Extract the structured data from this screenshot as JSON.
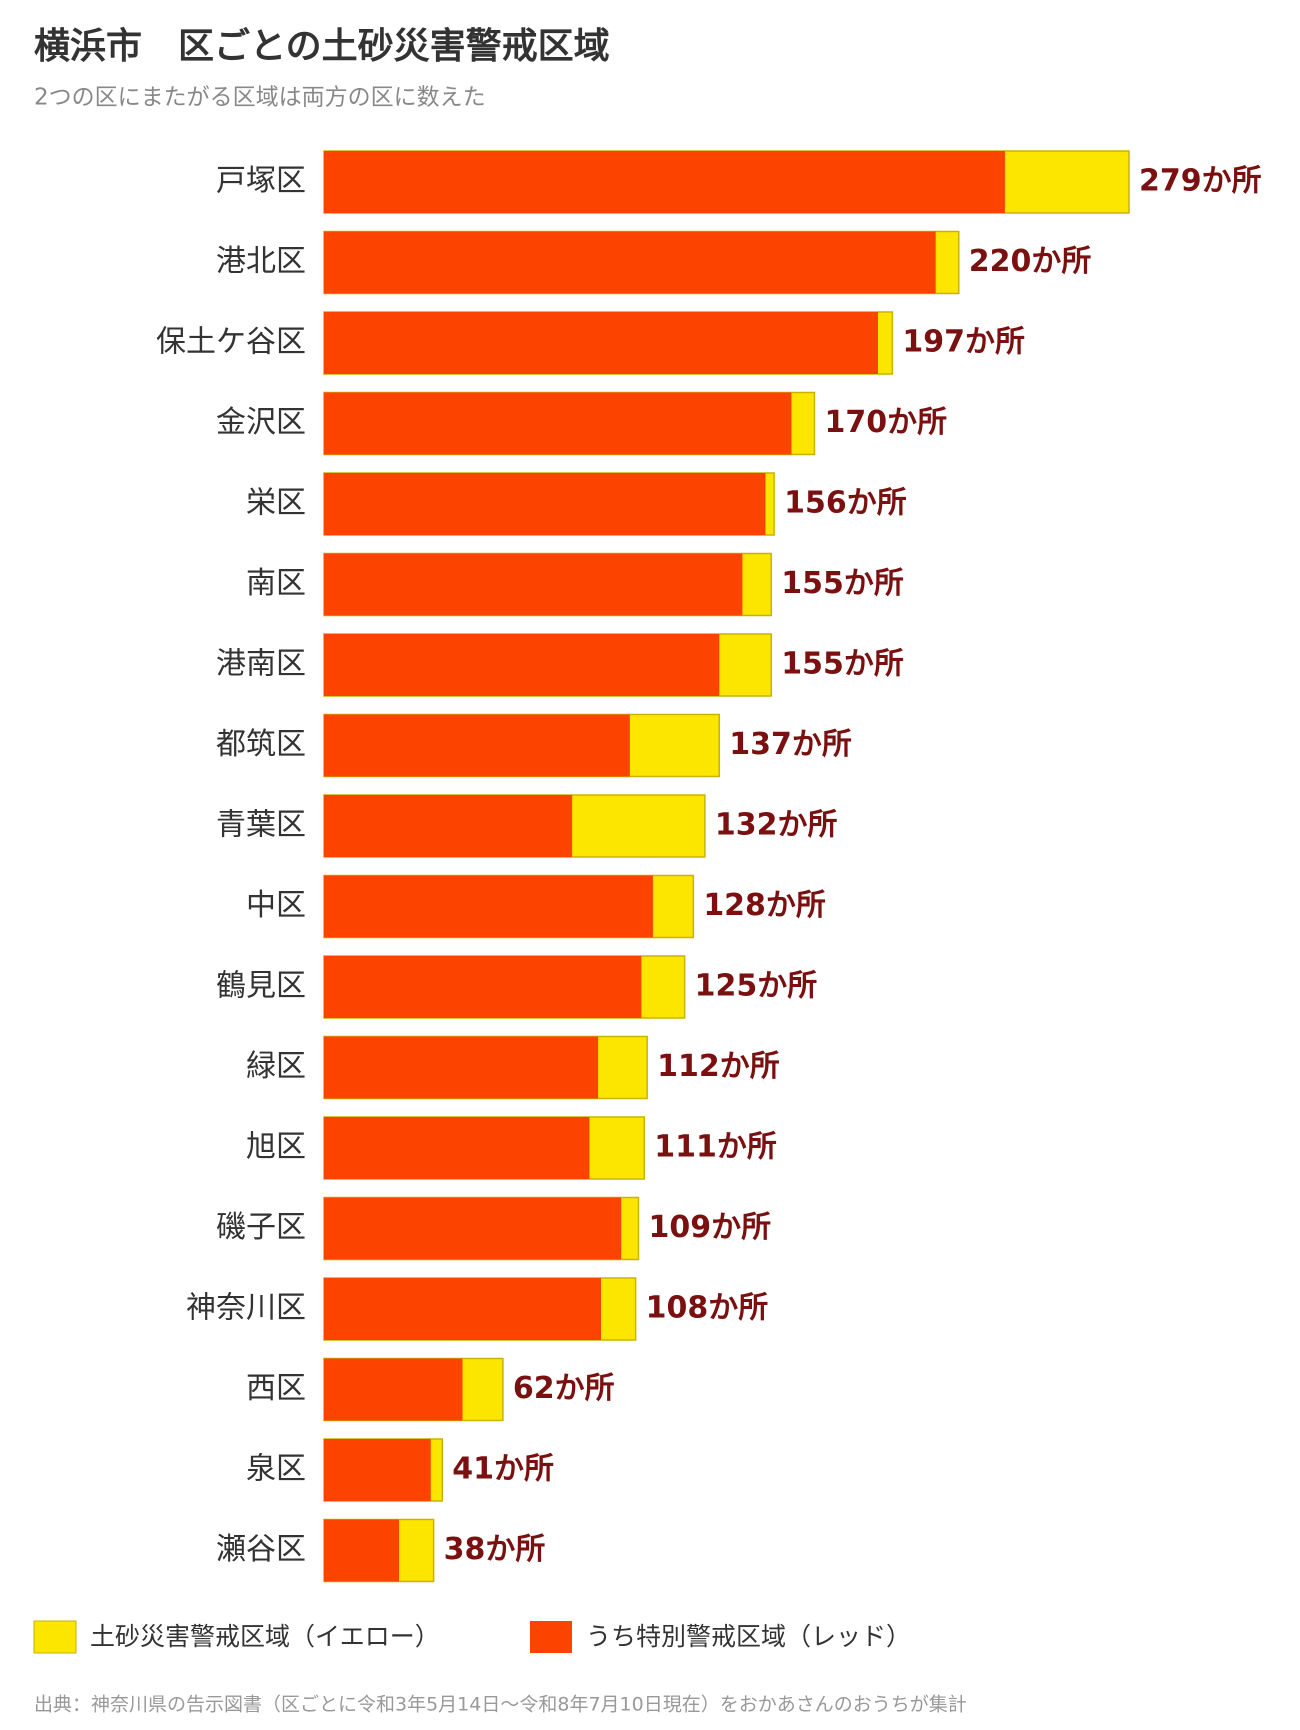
{
  "chart_data": {
    "type": "bar",
    "title": "横浜市　区ごとの土砂災害警戒区域",
    "subtitle": "2つの区にまたがる区域は両方の区に数えた",
    "categories": [
      "戸塚区",
      "港北区",
      "保土ケ谷区",
      "金沢区",
      "栄区",
      "南区",
      "港南区",
      "都筑区",
      "青葉区",
      "中区",
      "鶴見区",
      "緑区",
      "旭区",
      "磯子区",
      "神奈川区",
      "西区",
      "泉区",
      "瀬谷区"
    ],
    "series": [
      {
        "name": "土砂災害警戒区域（イエロー）",
        "color": "#fce600",
        "values": [
          279,
          220,
          197,
          170,
          156,
          155,
          155,
          137,
          132,
          128,
          125,
          112,
          111,
          109,
          108,
          62,
          41,
          38
        ],
        "value_labels": [
          "279か所",
          "220か所",
          "197か所",
          "170か所",
          "156か所",
          "155か所",
          "155か所",
          "137か所",
          "132か所",
          "128か所",
          "125か所",
          "112か所",
          "111か所",
          "109か所",
          "108か所",
          "62か所",
          "41か所",
          "38か所"
        ]
      },
      {
        "name": "うち特別警戒区域（レッド）",
        "color": "#fc4300",
        "values": [
          236,
          212,
          192,
          162,
          153,
          145,
          137,
          106,
          86,
          114,
          110,
          95,
          92,
          103,
          96,
          48,
          37,
          26
        ]
      }
    ],
    "source": "出典：神奈川県の告示図書（区ごとに令和3年5月14日〜令和8年7月10日現在）をおかあさんのおうちが集計"
  }
}
